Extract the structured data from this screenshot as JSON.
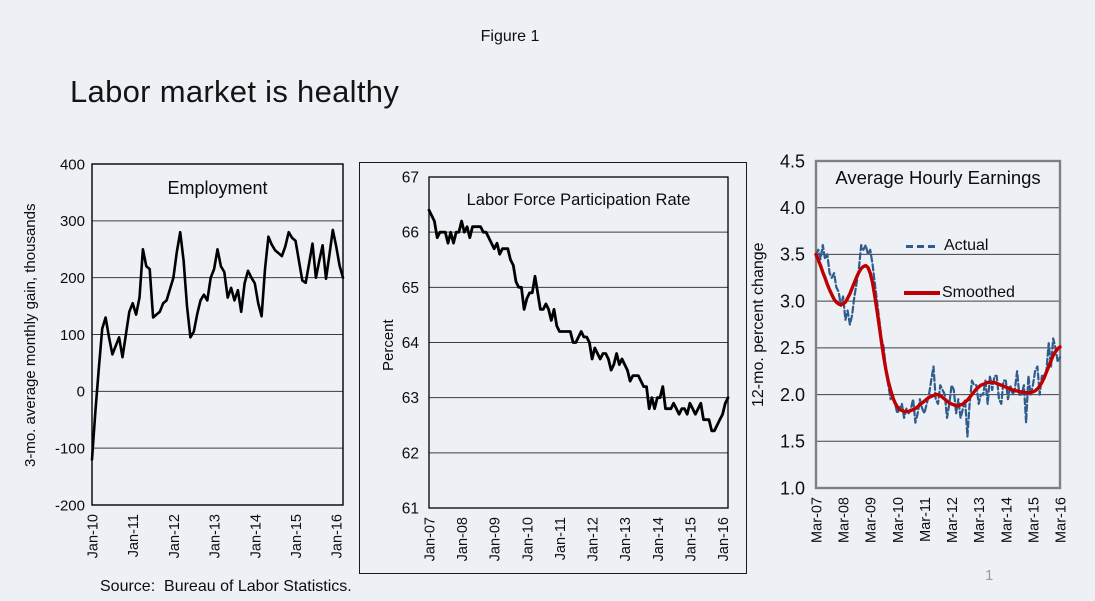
{
  "slide": {
    "figure_label": "Figure 1",
    "title": "Labor market is healthy",
    "source": "Source:  Bureau of Labor Statistics.",
    "page_number": "1",
    "background_color": "#EDF0F5"
  },
  "chart_data": [
    {
      "type": "line",
      "title": "Employment",
      "ylabel": "3-mo. average monthly gain, thousands",
      "ylim": [
        -200,
        400
      ],
      "yticks": [
        400,
        300,
        200,
        100,
        0,
        -100,
        -200
      ],
      "xticks": [
        "Jan-10",
        "Jan-11",
        "Jan-12",
        "Jan-13",
        "Jan-14",
        "Jan-15",
        "Jan-16"
      ],
      "x_range": [
        "Jan-10",
        "Mar-16"
      ],
      "x_frequency": "monthly",
      "grid": true,
      "legend_position": "none",
      "series": [
        {
          "name": "Employment",
          "color": "#000000",
          "line_style": "solid",
          "values": [
            -120,
            -35,
            40,
            110,
            130,
            95,
            65,
            80,
            95,
            60,
            100,
            140,
            155,
            135,
            165,
            250,
            220,
            215,
            130,
            135,
            140,
            155,
            160,
            180,
            200,
            245,
            280,
            230,
            150,
            95,
            105,
            135,
            160,
            170,
            160,
            200,
            215,
            250,
            220,
            210,
            165,
            182,
            160,
            178,
            140,
            190,
            212,
            200,
            190,
            155,
            132,
            215,
            272,
            258,
            248,
            243,
            238,
            255,
            280,
            270,
            265,
            230,
            195,
            191,
            225,
            260,
            200,
            230,
            257,
            198,
            240,
            284,
            255,
            221,
            200
          ]
        }
      ]
    },
    {
      "type": "line",
      "title": "Labor Force Participation Rate",
      "ylabel": "Percent",
      "ylim": [
        61,
        67
      ],
      "yticks": [
        67,
        66,
        65,
        64,
        63,
        62,
        61
      ],
      "xticks": [
        "Jan-07",
        "Jan-08",
        "Jan-09",
        "Jan-10",
        "Jan-11",
        "Jan-12",
        "Jan-13",
        "Jan-14",
        "Jan-15",
        "Jan-16"
      ],
      "x_range": [
        "Jan-07",
        "Mar-16"
      ],
      "x_frequency": "monthly",
      "grid": true,
      "legend_position": "none",
      "series": [
        {
          "name": "Labor Force Participation Rate",
          "color": "#000000",
          "line_style": "solid",
          "values": [
            66.4,
            66.3,
            66.2,
            65.9,
            66.0,
            66.0,
            66.0,
            65.8,
            66.0,
            65.8,
            66.0,
            66.0,
            66.2,
            66.0,
            66.1,
            65.9,
            66.1,
            66.1,
            66.1,
            66.1,
            66.0,
            66.0,
            65.9,
            65.8,
            65.7,
            65.8,
            65.6,
            65.7,
            65.7,
            65.7,
            65.5,
            65.4,
            65.1,
            65.0,
            65.0,
            64.6,
            64.8,
            64.9,
            64.9,
            65.2,
            64.9,
            64.6,
            64.6,
            64.7,
            64.6,
            64.4,
            64.6,
            64.3,
            64.2,
            64.2,
            64.2,
            64.2,
            64.2,
            64.0,
            64.0,
            64.1,
            64.2,
            64.1,
            64.1,
            64.0,
            63.7,
            63.9,
            63.8,
            63.7,
            63.8,
            63.8,
            63.7,
            63.5,
            63.6,
            63.8,
            63.6,
            63.7,
            63.6,
            63.5,
            63.3,
            63.4,
            63.4,
            63.4,
            63.3,
            63.2,
            63.2,
            62.8,
            63.0,
            62.8,
            63.0,
            63.0,
            63.2,
            62.8,
            62.8,
            62.8,
            62.9,
            62.8,
            62.7,
            62.8,
            62.8,
            62.7,
            62.9,
            62.8,
            62.7,
            62.8,
            62.9,
            62.6,
            62.6,
            62.6,
            62.4,
            62.4,
            62.5,
            62.6,
            62.7,
            62.9,
            63.0
          ]
        }
      ]
    },
    {
      "type": "line",
      "title": "Average Hourly Earnings",
      "ylabel": "12-mo. percent change",
      "ylim": [
        1.0,
        4.5
      ],
      "yticks": [
        "4.5",
        "4.0",
        "3.5",
        "3.0",
        "2.5",
        "2.0",
        "1.5",
        "1.0"
      ],
      "xticks": [
        "Mar-07",
        "Mar-08",
        "Mar-09",
        "Mar-10",
        "Mar-11",
        "Mar-12",
        "Mar-13",
        "Mar-14",
        "Mar-15",
        "Mar-16"
      ],
      "x_range": [
        "Mar-07",
        "Mar-16"
      ],
      "x_frequency": "monthly",
      "grid": true,
      "legend_position": "inside-top",
      "series": [
        {
          "name": "Actual",
          "color": "#2E5C8C",
          "line_style": "dashed",
          "values": [
            3.5,
            3.55,
            3.45,
            3.6,
            3.45,
            3.5,
            3.3,
            3.25,
            3.3,
            3.15,
            3.1,
            2.95,
            3.05,
            2.8,
            2.9,
            2.75,
            2.85,
            3.05,
            3.2,
            3.35,
            3.6,
            3.55,
            3.6,
            3.5,
            3.55,
            3.4,
            3.2,
            3.0,
            2.8,
            2.6,
            2.5,
            2.25,
            2.1,
            1.95,
            2.0,
            1.9,
            1.8,
            1.85,
            1.9,
            1.75,
            1.85,
            1.8,
            1.85,
            1.95,
            1.7,
            1.8,
            1.95,
            1.85,
            1.8,
            1.9,
            2.0,
            2.15,
            2.3,
            1.95,
            1.9,
            2.1,
            2.05,
            2.0,
            1.75,
            1.9,
            2.1,
            2.05,
            1.8,
            1.95,
            1.75,
            1.85,
            1.95,
            1.55,
            1.9,
            2.15,
            2.1,
            2.1,
            1.9,
            2.0,
            2.0,
            2.15,
            1.9,
            2.2,
            2.05,
            2.2,
            2.2,
            1.95,
            1.9,
            2.15,
            2.15,
            1.95,
            2.1,
            2.0,
            2.05,
            2.25,
            2.0,
            2.0,
            2.1,
            1.7,
            2.2,
            2.0,
            2.1,
            2.25,
            2.3,
            2.0,
            2.2,
            2.2,
            2.25,
            2.55,
            2.3,
            2.6,
            2.5,
            2.35,
            2.4
          ]
        },
        {
          "name": "Smoothed",
          "color": "#C00000",
          "line_style": "solid",
          "values": [
            3.5,
            3.44,
            3.38,
            3.31,
            3.25,
            3.18,
            3.12,
            3.07,
            3.02,
            2.99,
            2.97,
            2.96,
            2.97,
            2.99,
            3.03,
            3.08,
            3.14,
            3.2,
            3.26,
            3.31,
            3.35,
            3.37,
            3.38,
            3.36,
            3.3,
            3.2,
            3.06,
            2.9,
            2.73,
            2.56,
            2.4,
            2.26,
            2.14,
            2.05,
            1.97,
            1.91,
            1.87,
            1.84,
            1.83,
            1.82,
            1.82,
            1.82,
            1.83,
            1.84,
            1.85,
            1.87,
            1.89,
            1.91,
            1.93,
            1.95,
            1.97,
            1.98,
            1.99,
            2.0,
            2.0,
            1.99,
            1.97,
            1.95,
            1.93,
            1.91,
            1.9,
            1.89,
            1.88,
            1.88,
            1.89,
            1.9,
            1.92,
            1.94,
            1.97,
            2.0,
            2.03,
            2.06,
            2.08,
            2.1,
            2.11,
            2.12,
            2.13,
            2.13,
            2.13,
            2.13,
            2.12,
            2.11,
            2.1,
            2.09,
            2.08,
            2.07,
            2.06,
            2.05,
            2.04,
            2.04,
            2.03,
            2.03,
            2.02,
            2.02,
            2.02,
            2.02,
            2.03,
            2.04,
            2.06,
            2.09,
            2.13,
            2.18,
            2.24,
            2.3,
            2.36,
            2.42,
            2.46,
            2.49,
            2.51
          ]
        }
      ]
    }
  ]
}
